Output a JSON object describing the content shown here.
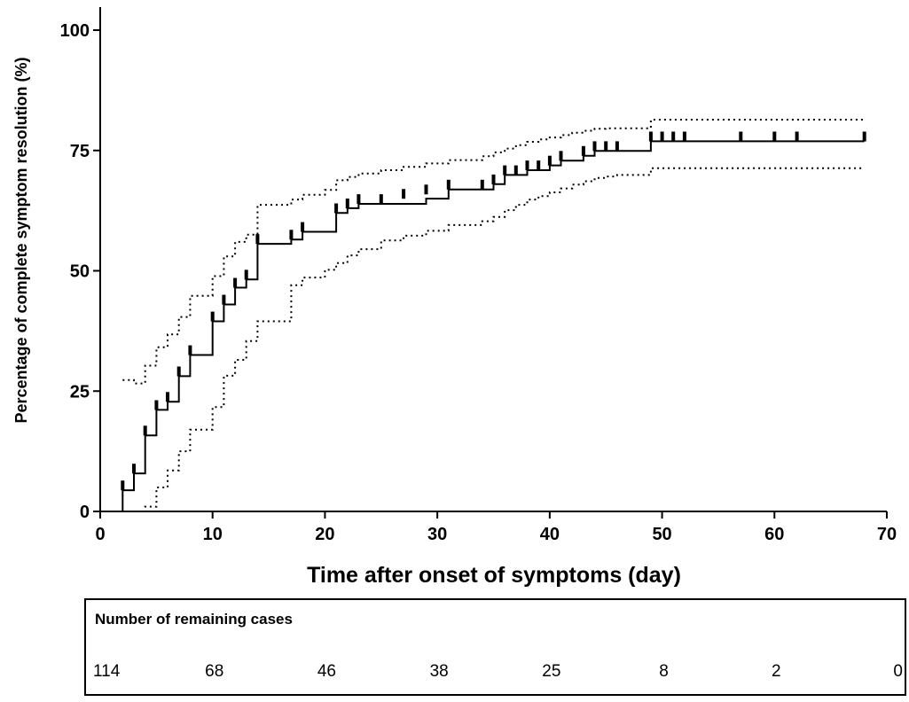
{
  "chart_data": {
    "type": "line",
    "xlabel": "Time after onset of symptoms (day)",
    "ylabel": "Percentage of complete symptom resolution (%)",
    "xlim": [
      0,
      70
    ],
    "ylim": [
      0,
      100
    ],
    "x_ticks": [
      0,
      10,
      20,
      30,
      40,
      50,
      60,
      70
    ],
    "y_ticks": [
      0,
      25,
      50,
      75,
      100
    ],
    "grid": false,
    "series": [
      {
        "role": "estimate",
        "style": "solid step",
        "x": [
          0,
          2,
          3,
          4,
          5,
          6,
          7,
          8,
          10,
          11,
          12,
          13,
          14,
          17,
          18,
          20,
          21,
          22,
          23,
          25,
          27,
          29,
          31,
          34,
          35,
          36,
          37,
          38,
          39,
          40,
          41,
          42,
          43,
          44,
          45,
          46,
          49,
          51,
          52,
          57,
          60,
          62,
          68
        ],
        "y": [
          0,
          4.4,
          7.9,
          15.8,
          21.1,
          22.8,
          28.1,
          32.5,
          39.5,
          43.0,
          46.5,
          48.2,
          55.6,
          56.5,
          58.1,
          58.1,
          62.0,
          63.0,
          63.9,
          63.9,
          63.9,
          65.0,
          66.9,
          66.9,
          68.0,
          69.9,
          69.9,
          70.9,
          70.9,
          71.9,
          72.9,
          72.9,
          73.9,
          74.9,
          74.9,
          74.9,
          76.9,
          76.9,
          76.9,
          76.9,
          76.9,
          76.9,
          76.9
        ]
      },
      {
        "role": "upper confidence bound",
        "style": "dotted step",
        "x": [
          2,
          3,
          4,
          5,
          6,
          7,
          8,
          10,
          11,
          12,
          13,
          14,
          17,
          18,
          20,
          21,
          22,
          23,
          25,
          27,
          29,
          31,
          34,
          35,
          36,
          37,
          38,
          39,
          40,
          41,
          42,
          43,
          44,
          45,
          46,
          49,
          51,
          52,
          57,
          60,
          62,
          68
        ],
        "y": [
          27.3,
          26.6,
          30.3,
          34.1,
          36.8,
          40.4,
          44.8,
          48.9,
          53.0,
          56.0,
          57.5,
          63.7,
          64.8,
          65.8,
          66.8,
          68.8,
          69.5,
          70.2,
          70.9,
          71.6,
          72.3,
          73.0,
          73.8,
          74.6,
          75.4,
          76.1,
          76.8,
          77.3,
          77.7,
          78.2,
          78.7,
          79.1,
          79.5,
          79.6,
          79.6,
          81.4,
          81.4,
          81.4,
          81.4,
          81.4,
          81.4,
          81.4
        ]
      },
      {
        "role": "lower confidence bound",
        "style": "dotted step",
        "x": [
          2,
          3,
          4,
          5,
          6,
          7,
          8,
          10,
          11,
          12,
          13,
          14,
          17,
          18,
          20,
          21,
          22,
          23,
          25,
          27,
          29,
          31,
          34,
          35,
          36,
          37,
          38,
          39,
          40,
          41,
          42,
          43,
          44,
          45,
          46,
          49,
          51,
          52,
          57,
          60,
          62,
          68
        ],
        "y": [
          0,
          0,
          1.0,
          5.0,
          8.5,
          12.5,
          17.0,
          21.7,
          28.2,
          31.5,
          35.4,
          39.5,
          47.0,
          48.6,
          50.2,
          51.6,
          53.2,
          54.5,
          56.3,
          57.3,
          58.3,
          59.5,
          60.3,
          61.2,
          62.6,
          63.7,
          64.8,
          65.5,
          66.3,
          67.1,
          67.9,
          68.6,
          69.3,
          69.6,
          69.9,
          71.3,
          71.3,
          71.3,
          71.3,
          71.3,
          71.3,
          71.3
        ]
      }
    ],
    "censor_marks": {
      "x": [
        2,
        3,
        4,
        5,
        6,
        7,
        8,
        10,
        11,
        12,
        13,
        14,
        17,
        18,
        21,
        22,
        23,
        25,
        27,
        29,
        31,
        34,
        35,
        36,
        37,
        38,
        39,
        40,
        41,
        43,
        44,
        45,
        46,
        49,
        50,
        51,
        52,
        57,
        60,
        62,
        68
      ],
      "y": [
        5.3,
        8.8,
        16.7,
        22.0,
        23.7,
        29.0,
        33.4,
        40.4,
        43.9,
        47.4,
        49.1,
        56.5,
        57.4,
        59.0,
        62.9,
        63.9,
        64.8,
        64.8,
        65.9,
        66.8,
        67.8,
        67.8,
        68.9,
        70.8,
        70.8,
        71.8,
        71.8,
        72.8,
        73.8,
        74.8,
        75.8,
        75.8,
        75.8,
        77.8,
        77.8,
        77.8,
        77.8,
        77.8,
        77.8,
        77.8,
        77.8
      ]
    }
  },
  "risk_table": {
    "title": "Number of remaining cases",
    "values": [
      "114",
      "68",
      "46",
      "38",
      "25",
      "8",
      "2",
      "0"
    ]
  }
}
